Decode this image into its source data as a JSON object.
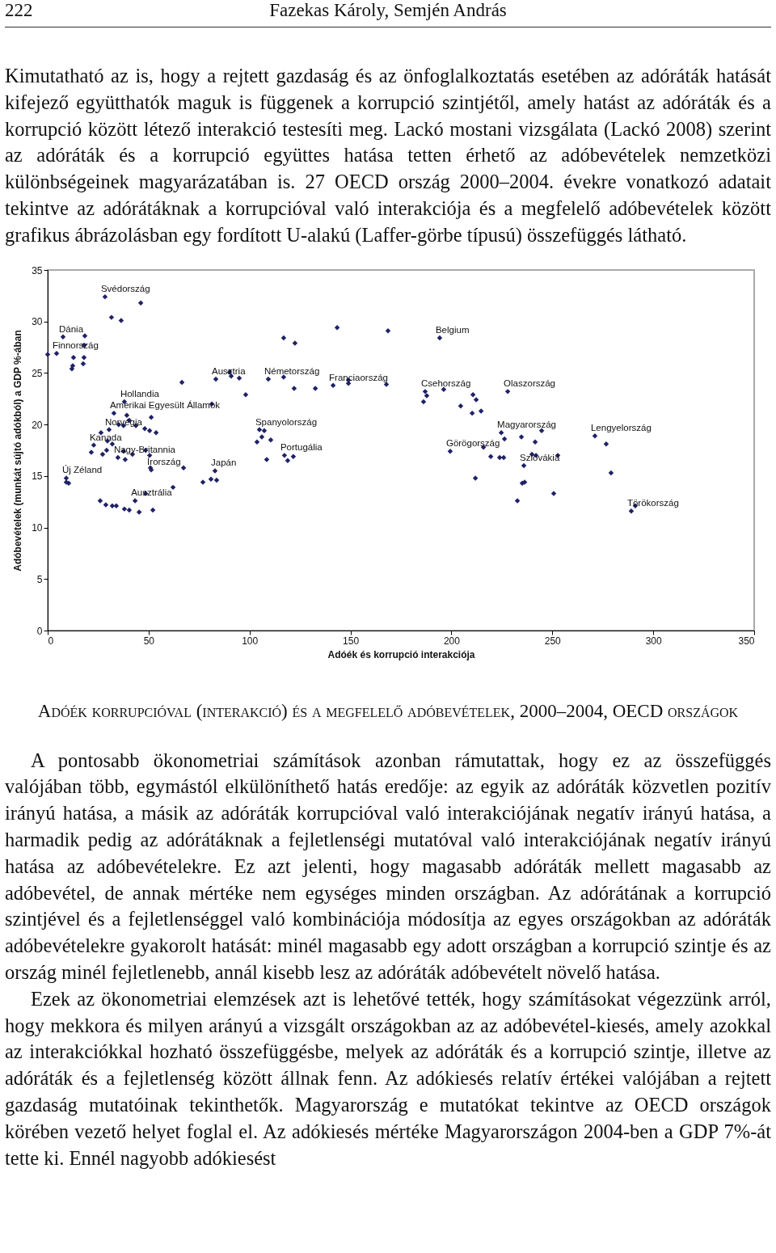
{
  "chart_data": {
    "type": "scatter",
    "title": "Adóék korrupcióval (interakció) és a megfelelő adóbevételek, 2000–2004, OECD országok",
    "xlabel": "Adóék és korrupció interakciója",
    "ylabel": "Adóbevételek (munkát sújtó adókból) a GDP %-ában",
    "xlim": [
      0,
      350
    ],
    "xticks": [
      0,
      50,
      100,
      150,
      200,
      250,
      300,
      350
    ],
    "ylim": [
      0,
      35
    ],
    "yticks": [
      0,
      5,
      10,
      15,
      20,
      25,
      30,
      35
    ],
    "marker": "diamond",
    "color": "#1f2266",
    "x": [
      28.4,
      46.1,
      31.6,
      36.4,
      0,
      4.4,
      7.6,
      18.4,
      18.0,
      12.8,
      18.0,
      12.4,
      12.0,
      17.6,
      38.0,
      66.5,
      83.3,
      81.3,
      90.1,
      90.9,
      94.9,
      98.1,
      32.8,
      39.2,
      35.2,
      37.6,
      43.7,
      40.4,
      48.1,
      50.5,
      53.7,
      51.3,
      30.4,
      26.4,
      29.6,
      32.0,
      22.8,
      21.6,
      27.2,
      29.2,
      34.8,
      37.6,
      38.4,
      42.0,
      48.5,
      50.5,
      9.2,
      9.2,
      10.4,
      50.9,
      51.3,
      67.3,
      62.1,
      76.9,
      80.9,
      82.9,
      83.7,
      26.0,
      28.8,
      32.0,
      34.0,
      38.0,
      40.4,
      45.3,
      52.1,
      43.3,
      48.5,
      108.5,
      143.4,
      168.6,
      194.2,
      116.9,
      122.5,
      109.3,
      116.9,
      122.1,
      132.6,
      141.4,
      149.0,
      149.0,
      167.8,
      187.0,
      187.8,
      186.2,
      196.2,
      104.9,
      107.3,
      106.1,
      103.7,
      110.5,
      117.3,
      118.9,
      121.7,
      199.4,
      211.9,
      215.9,
      227.9,
      210.7,
      212.3,
      204.6,
      210.3,
      214.7,
      244.7,
      224.7,
      226.3,
      234.7,
      241.5,
      271.1,
      276.7,
      219.5,
      223.9,
      225.9,
      239.9,
      241.9,
      252.7,
      235.9,
      235.1,
      236.3,
      279.1,
      250.7,
      232.7,
      291.1,
      289.1
    ],
    "values": [
      32.4,
      31.8,
      30.4,
      30.1,
      26.8,
      26.9,
      28.5,
      28.6,
      27.7,
      26.5,
      26.5,
      25.7,
      25.4,
      25.9,
      22.2,
      24.1,
      24.4,
      22.0,
      25.1,
      24.7,
      24.5,
      22.9,
      21.1,
      20.9,
      20.0,
      19.9,
      19.9,
      20.4,
      19.6,
      19.4,
      19.2,
      20.7,
      19.5,
      19.2,
      18.4,
      18.1,
      18.0,
      17.3,
      17.1,
      17.5,
      16.8,
      17.4,
      16.6,
      17.1,
      17.5,
      17.0,
      14.8,
      14.4,
      14.3,
      15.8,
      15.6,
      15.8,
      13.9,
      14.4,
      14.7,
      15.5,
      14.6,
      12.6,
      12.2,
      12.1,
      12.1,
      11.8,
      11.7,
      11.5,
      11.7,
      12.6,
      13.3,
      16.6,
      29.4,
      29.1,
      28.4,
      28.4,
      27.9,
      24.4,
      24.6,
      23.5,
      23.5,
      23.8,
      24.3,
      24.0,
      23.9,
      23.2,
      22.8,
      22.2,
      23.4,
      19.5,
      19.4,
      18.8,
      18.3,
      18.5,
      17.0,
      16.5,
      16.9,
      17.4,
      14.8,
      17.8,
      23.2,
      22.9,
      22.4,
      21.8,
      21.1,
      21.3,
      19.4,
      19.2,
      18.6,
      18.8,
      18.3,
      18.9,
      18.1,
      16.9,
      16.8,
      16.8,
      17.1,
      17.0,
      17.0,
      16.0,
      14.3,
      14.4,
      15.3,
      13.3,
      12.6,
      12.1,
      11.6
    ],
    "annotations": [
      "222",
      "Fazekas Károly, Semjén András",
      "Kimutatható az is, hogy a rejtett gazdaság és az önfoglalkoztatás esetében az adóráták hatását kifejező együtthatók maguk is függenek a korrupció szintjétől, amely hatást az adóráták és a korrupció között létező interakció testesíti meg. Lackó mostani vizsgálata (Lackó 2008) szerint az adóráták és a korrupció együttes hatása tetten érhető az adóbevételek nemzetközi különbségeinek magyarázatában is. 27 OECD ország 2000–2004. évekre vonatkozó adatait tekintve az adórátáknak a korrupcióval való interakciója és a megfelelő adóbevételek között grafikus ábrázolásban egy fordított U-alakú (Laffer-görbe típusú) összefüggés látható.",
      "A pontosabb ökonometriai számítások azonban rámutattak, hogy ez az összefüggés valójában több, egymástól elkülöníthető hatás eredője: az egyik az adóráták közvetlen pozitív irányú hatása, a másik az adóráták korrupcióval való interakciójának negatív irányú hatása, a harmadik pedig az adórátáknak a fejletlenségi mutatóval való interakciójának negatív irányú hatása az adóbevételekre. Ez azt jelenti, hogy magasabb adóráták mellett magasabb az adóbevétel, de annak mértéke nem egységes minden országban. Az adórátának a korrupció szintjével és a fejletlenséggel való kombinációja módosítja az egyes országokban az adóráták adóbevételekre gyakorolt hatását: minél magasabb egy adott országban a korrupció szintje és az ország minél fejletlenebb, annál kisebb lesz az adóráták adóbevételt növelő hatása.",
      "Ezek az ökonometriai elemzések azt is lehetővé tették, hogy számításokat végezzünk arról, hogy mekkora és milyen arányú a vizsgált országokban az az adóbevétel-kiesés, amely azokkal az interakciókkal hozható összefüggésbe, melyek az adóráták és a korrupció szintje, illetve az adóráták és a fejletlenség között állnak fenn. Az adókiesés relatív értékei valójában a rejtett gazdaság mutatóinak tekinthetők. Magyarország e mutatókat tekintve az OECD országok körében vezető helyet foglal el. Az adókiesés mértéke Magyarországon 2004-ben a GDP 7%-át tette ki. Ennél nagyobb adókiesést",
      {
        "text": "Svédország",
        "x": 28.4,
        "y": 32.4
      },
      {
        "text": "Dánia",
        "x": 7.6,
        "y": 28.5
      },
      {
        "text": "Finnország",
        "x": 4.4,
        "y": 26.9
      },
      {
        "text": "Hollandia",
        "x": 38.0,
        "y": 22.2
      },
      {
        "text": "Amerikai Egyesült Államok",
        "x": 32.8,
        "y": 21.1
      },
      {
        "text": "Norvégia",
        "x": 30.4,
        "y": 19.5
      },
      {
        "text": "Kanada",
        "x": 22.8,
        "y": 18.0
      },
      {
        "text": "Nagy-Britannia",
        "x": 34.8,
        "y": 16.8
      },
      {
        "text": "Új Zéland",
        "x": 9.2,
        "y": 14.8
      },
      {
        "text": "Írország",
        "x": 51.3,
        "y": 15.6
      },
      {
        "text": "Japán",
        "x": 82.9,
        "y": 15.5
      },
      {
        "text": "Ausztrália",
        "x": 43.3,
        "y": 12.6
      },
      {
        "text": "Ausztria",
        "x": 83.3,
        "y": 24.4
      },
      {
        "text": "Németország",
        "x": 109.3,
        "y": 24.4
      },
      {
        "text": "Franciaország",
        "x": 141.4,
        "y": 23.8
      },
      {
        "text": "Belgium",
        "x": 194.2,
        "y": 28.4
      },
      {
        "text": "Csehország",
        "x": 187.0,
        "y": 23.2
      },
      {
        "text": "Olaszország",
        "x": 227.9,
        "y": 23.2
      },
      {
        "text": "Spanyolország",
        "x": 104.9,
        "y": 19.5
      },
      {
        "text": "Portugália",
        "x": 117.3,
        "y": 17.0
      },
      {
        "text": "Magyarország",
        "x": 224.7,
        "y": 19.2
      },
      {
        "text": "Görögország",
        "x": 199.4,
        "y": 17.4
      },
      {
        "text": "Lengyelország",
        "x": 271.1,
        "y": 18.9
      },
      {
        "text": "Szlovákia",
        "x": 235.9,
        "y": 16.0
      },
      {
        "text": "Törökország",
        "x": 289.1,
        "y": 11.6
      }
    ]
  }
}
